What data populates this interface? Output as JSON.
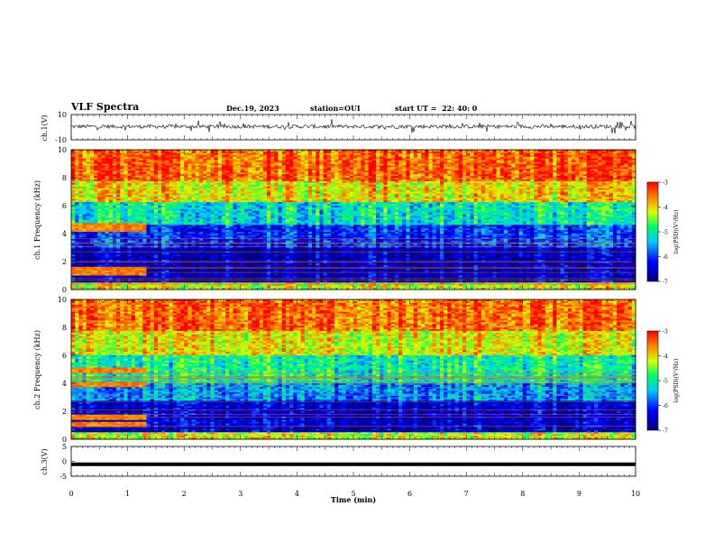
{
  "header": {
    "title": "VLF Spectra",
    "date": "Dec.19, 2023",
    "station": "station=OUI",
    "start": "start UT =  22: 40: 0"
  },
  "chart_data": [
    {
      "type": "line",
      "panel": "ch1-waveform",
      "ylabel": "ch.1(V)",
      "ylim": [
        -10,
        10
      ],
      "y_ticks": [
        "10",
        "-10"
      ],
      "xlim": [
        0,
        10
      ],
      "color": "#000000",
      "series": [
        {
          "values_summary": "noisy trace centered near 0 V, spikes to about +/-5 V"
        }
      ]
    },
    {
      "type": "heatmap",
      "panel": "ch1-spectrogram",
      "ylabel": "ch.1\nFrequency (kHz)",
      "ylim": [
        0,
        10
      ],
      "y_ticks": [
        "0",
        "2",
        "4",
        "6",
        "8",
        "10"
      ],
      "xlim": [
        0,
        10
      ],
      "colorbar": {
        "label": "log(PSD)(V²/Hz)",
        "range": [
          -7,
          -3
        ],
        "ticks": [
          "-3",
          "-4",
          "-5",
          "-6",
          "-7"
        ]
      },
      "bands": [
        {
          "from": 0.0,
          "to": 0.5,
          "level": -4.2
        },
        {
          "from": 0.5,
          "to": 3.0,
          "level": -6.6
        },
        {
          "from": 3.0,
          "to": 4.6,
          "level": -6.0
        },
        {
          "from": 4.6,
          "to": 6.2,
          "level": -5.1
        },
        {
          "from": 6.2,
          "to": 7.8,
          "level": -4.0
        },
        {
          "from": 7.8,
          "to": 10.0,
          "level": -3.4
        }
      ],
      "early_signal": {
        "t_end_min": 1.35,
        "freqs_khz": [
          1.2,
          1.5,
          4.3,
          4.6
        ],
        "level": -3.6
      }
    },
    {
      "type": "heatmap",
      "panel": "ch2-spectrogram",
      "ylabel": "ch.2\nFrequency (kHz)",
      "ylim": [
        0,
        10
      ],
      "y_ticks": [
        "0",
        "2",
        "4",
        "6",
        "8",
        "10"
      ],
      "xlim": [
        0,
        10
      ],
      "colorbar": {
        "label": "log(PSD)(V²/Hz)",
        "range": [
          -7,
          -3
        ],
        "ticks": [
          "-3",
          "-4",
          "-5",
          "-6",
          "-7"
        ]
      },
      "bands": [
        {
          "from": 0.0,
          "to": 0.5,
          "level": -4.2
        },
        {
          "from": 0.5,
          "to": 2.8,
          "level": -6.5
        },
        {
          "from": 2.8,
          "to": 4.0,
          "level": -5.6
        },
        {
          "from": 4.0,
          "to": 6.0,
          "level": -5.0
        },
        {
          "from": 6.0,
          "to": 7.8,
          "level": -4.1
        },
        {
          "from": 7.8,
          "to": 10.0,
          "level": -3.5
        }
      ],
      "early_signal": {
        "t_end_min": 1.35,
        "freqs_khz": [
          1.1,
          1.6,
          3.9,
          4.9
        ],
        "level": -3.6
      }
    },
    {
      "type": "line",
      "panel": "ch3-waveform",
      "ylabel": "ch.3(V)",
      "ylim": [
        -5,
        5
      ],
      "y_ticks": [
        "5",
        "0",
        "-5"
      ],
      "xlim": [
        0,
        10
      ],
      "color": "#000000",
      "series": [
        {
          "values_summary": "flat line at about -1 V"
        }
      ],
      "y_level": -1
    }
  ],
  "x_axis": {
    "label": "Time (min)",
    "ticks": [
      "0",
      "1",
      "2",
      "3",
      "4",
      "5",
      "6",
      "7",
      "8",
      "9",
      "10"
    ]
  }
}
